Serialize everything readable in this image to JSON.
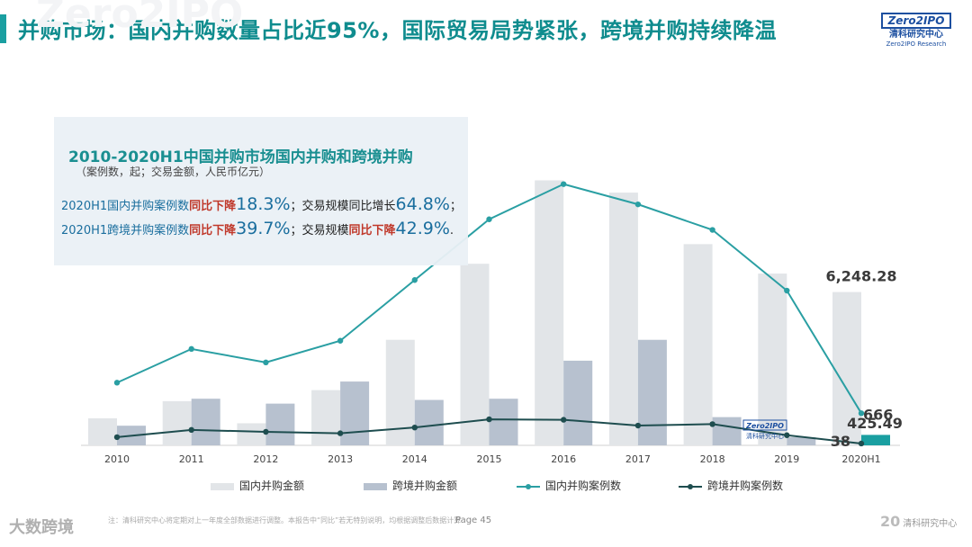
{
  "header": {
    "title": "并购市场：国内并购数量占比近95%，国际贸易局势紧张，跨境并购持续降温",
    "logo_badge": "Zero2IPO",
    "logo_cn": "清科研究中心",
    "logo_en": "Zero2IPO Research"
  },
  "info_box": {
    "title": "2010-2020H1中国并购市场国内并购和跨境并购",
    "subtitle": "（案例数，起；交易金额，人民币亿元）",
    "line1": {
      "prefix": "2020H1国内并购案例数",
      "red": "同比下降",
      "big": "18.3%",
      "mid": "；交易规模同比增长",
      "big2": "64.8%",
      "tail": "；"
    },
    "line2": {
      "prefix": "2020H1跨境并购案例数",
      "red": "同比下降",
      "big": "39.7%",
      "mid": "；交易规模",
      "red2": "同比下降",
      "big2": "42.9%",
      "tail": "."
    }
  },
  "chart_data": {
    "type": "bar+line",
    "categories": [
      "2010",
      "2011",
      "2012",
      "2013",
      "2014",
      "2015",
      "2016",
      "2017",
      "2018",
      "2019",
      "2020H1"
    ],
    "bar_series": [
      {
        "name": "国内并购金额",
        "color": "#e2e5e8",
        "values": [
          1100,
          1800,
          900,
          2250,
          4300,
          7400,
          10800,
          10300,
          8200,
          7000,
          6248.28
        ]
      },
      {
        "name": "跨境并购金额",
        "color": "#b7c1cf",
        "values": [
          800,
          1900,
          1700,
          2600,
          1850,
          1900,
          3450,
          4300,
          1150,
          330,
          425.49
        ]
      }
    ],
    "line_series": [
      {
        "name": "国内并购案例数",
        "color": "#2a9fa3",
        "values": [
          1300,
          2000,
          1720,
          2170,
          3430,
          4690,
          5420,
          5000,
          4470,
          3210,
          666
        ]
      },
      {
        "name": "跨境并购案例数",
        "color": "#1e4d4f",
        "values": [
          170,
          320,
          280,
          250,
          370,
          540,
          530,
          410,
          440,
          210,
          38
        ]
      }
    ],
    "labels": {
      "domestic_amount_2020H1": "6,248.28",
      "domestic_count_2020H1": "666",
      "cross_amount_2020H1": "425.49",
      "cross_count_2020H1": "38"
    },
    "highlight_last_bar_color": "#1a9fa1",
    "watermark": "Zero2IPO",
    "ylim_bar": [
      0,
      11000
    ],
    "ylim_line": [
      0,
      5600
    ]
  },
  "footer": {
    "note": "注：清科研究中心将定期对上一年度全部数据进行调整。本报告中“同比”若无特别说明，均根据调整后数据计算",
    "page_label": "Page 45",
    "brand": "清科研究中心",
    "brand_mark": "20",
    "watermark_logo": "大数跨境"
  }
}
